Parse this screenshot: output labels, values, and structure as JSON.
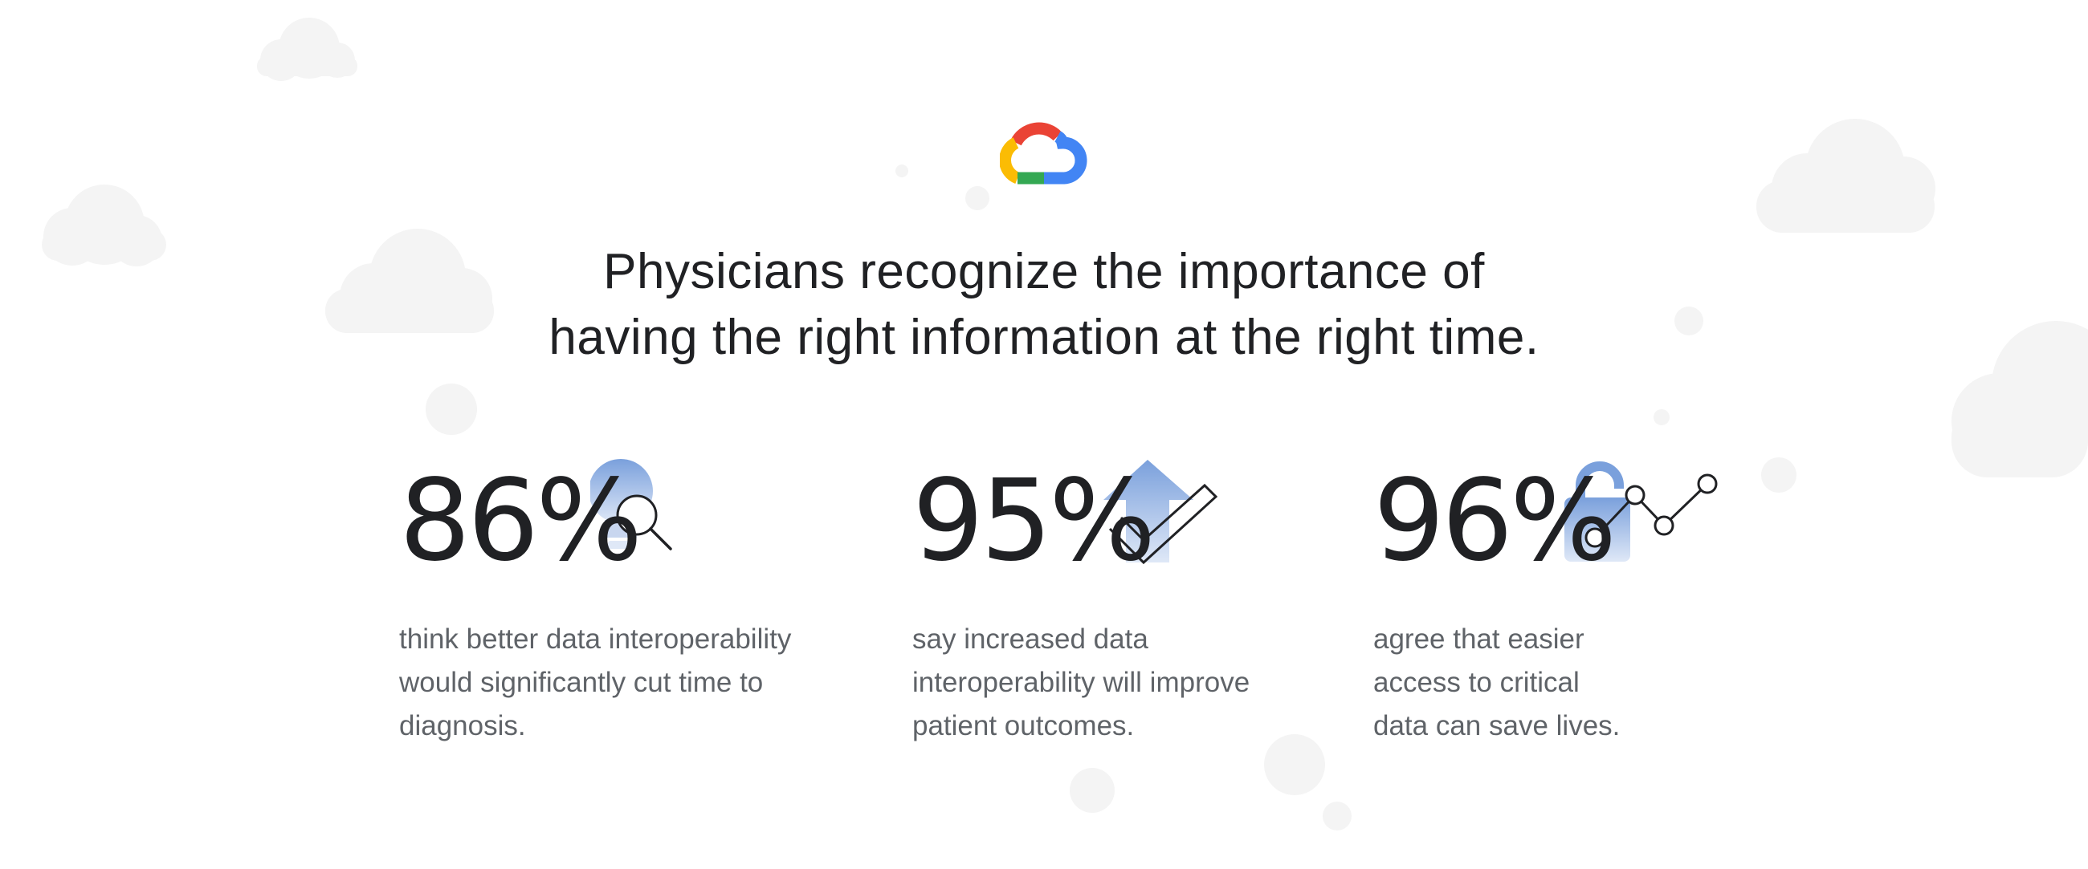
{
  "logo": {
    "icon": "google-cloud-logo-icon",
    "colors": {
      "red": "#EA4335",
      "yellow": "#FBBC04",
      "green": "#34A853",
      "blue": "#4285F4"
    }
  },
  "headline": {
    "line1": "Physicians recognize the importance of",
    "line2": "having the right information at the right time."
  },
  "stats": [
    {
      "value": "86%",
      "icon": "lightbulb-magnifier-icon",
      "line1": "think better data interoperability",
      "line2": "would significantly cut time to",
      "line3": "diagnosis."
    },
    {
      "value": "95%",
      "icon": "arrow-up-checkmark-icon",
      "line1": "say increased data",
      "line2": "interoperability will improve",
      "line3": "patient outcomes."
    },
    {
      "value": "96%",
      "icon": "unlocked-padlock-graph-icon",
      "line1": "agree that easier",
      "line2": "access to critical",
      "line3": "data can save lives."
    }
  ],
  "colors": {
    "text": "#202124",
    "muted_text": "#5f6368",
    "accent_blue": "#7aa0dc",
    "cloud": "#f4f4f4"
  }
}
